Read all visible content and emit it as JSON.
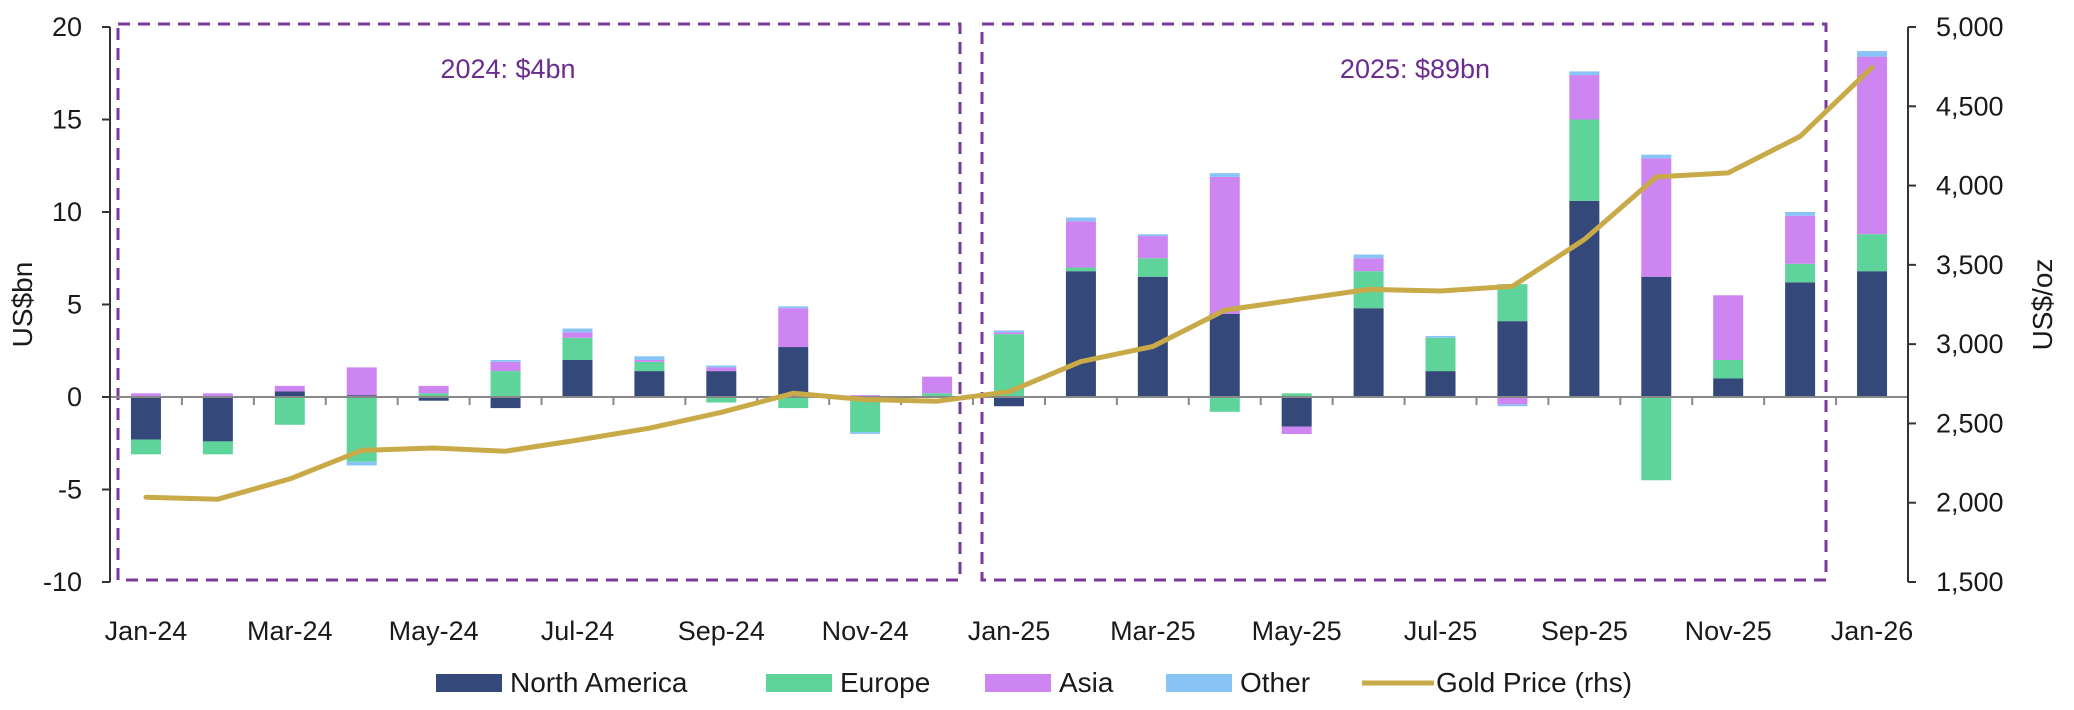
{
  "chart_data": {
    "type": "bar",
    "stacked": true,
    "ylabel": "US$bn",
    "y2label": "US$/oz",
    "ylim": [
      -10,
      20
    ],
    "y2lim": [
      1500,
      5000
    ],
    "yticks": [
      "-10",
      "-5",
      "0",
      "5",
      "10",
      "15",
      "20"
    ],
    "y2ticks": [
      "1,500",
      "2,000",
      "2,500",
      "3,000",
      "3,500",
      "4,000",
      "4,500",
      "5,000"
    ],
    "categories": [
      "Jan-24",
      "Feb-24",
      "Mar-24",
      "Apr-24",
      "May-24",
      "Jun-24",
      "Jul-24",
      "Aug-24",
      "Sep-24",
      "Oct-24",
      "Nov-24",
      "Dec-24",
      "Jan-25",
      "Feb-25",
      "Mar-25",
      "Apr-25",
      "May-25",
      "Jun-25",
      "Jul-25",
      "Aug-25",
      "Sep-25",
      "Oct-25",
      "Nov-25",
      "Dec-25",
      "Jan-26"
    ],
    "xtick_labels": [
      "Jan-24",
      "",
      "Mar-24",
      "",
      "May-24",
      "",
      "Jul-24",
      "",
      "Sep-24",
      "",
      "Nov-24",
      "",
      "Jan-25",
      "",
      "Mar-25",
      "",
      "May-25",
      "",
      "Jul-25",
      "",
      "Sep-25",
      "",
      "Nov-25",
      "",
      "Jan-26"
    ],
    "series": [
      {
        "name": "North America",
        "color": "#34497a",
        "values": [
          -2.3,
          -2.4,
          0.3,
          0.1,
          -0.2,
          -0.6,
          2.0,
          1.4,
          1.4,
          2.7,
          0.0,
          0.0,
          -0.5,
          6.8,
          6.5,
          4.5,
          -1.6,
          4.8,
          1.4,
          4.1,
          10.6,
          6.5,
          1.0,
          6.2,
          6.8
        ]
      },
      {
        "name": "Europe",
        "color": "#5fd49a",
        "values": [
          -0.8,
          -0.7,
          -1.5,
          -3.5,
          0.2,
          1.4,
          1.2,
          0.5,
          -0.3,
          -0.6,
          -1.9,
          0.2,
          3.4,
          0.2,
          1.0,
          -0.8,
          0.2,
          2.0,
          1.8,
          2.0,
          4.4,
          -4.5,
          1.0,
          1.0,
          2.0
        ]
      },
      {
        "name": "Asia",
        "color": "#cd85f2",
        "values": [
          0.2,
          0.2,
          0.3,
          1.5,
          0.4,
          0.5,
          0.3,
          0.1,
          0.2,
          2.1,
          0.1,
          0.9,
          0.1,
          2.5,
          1.2,
          7.4,
          -0.4,
          0.7,
          0.0,
          -0.4,
          2.4,
          6.4,
          3.5,
          2.6,
          9.6
        ]
      },
      {
        "name": "Other",
        "color": "#88c4f5",
        "values": [
          0.0,
          0.0,
          0.0,
          -0.2,
          0.0,
          0.1,
          0.2,
          0.2,
          0.1,
          0.1,
          -0.1,
          0.0,
          0.1,
          0.2,
          0.1,
          0.2,
          0.0,
          0.2,
          0.1,
          -0.1,
          0.2,
          0.2,
          0.0,
          0.2,
          0.3
        ]
      },
      {
        "name": "Gold Price (rhs)",
        "color": "#c9aa48",
        "type": "line",
        "axis": "right",
        "values": [
          2035,
          2022,
          2150,
          2330,
          2345,
          2325,
          2395,
          2470,
          2570,
          2690,
          2650,
          2640,
          2700,
          2890,
          2985,
          3215,
          3280,
          3345,
          3335,
          3365,
          3660,
          4055,
          4080,
          4310,
          4745
        ]
      }
    ],
    "annotations": [
      "2024: $4bn",
      "2025: $89bn"
    ],
    "legend_position": "bottom"
  }
}
